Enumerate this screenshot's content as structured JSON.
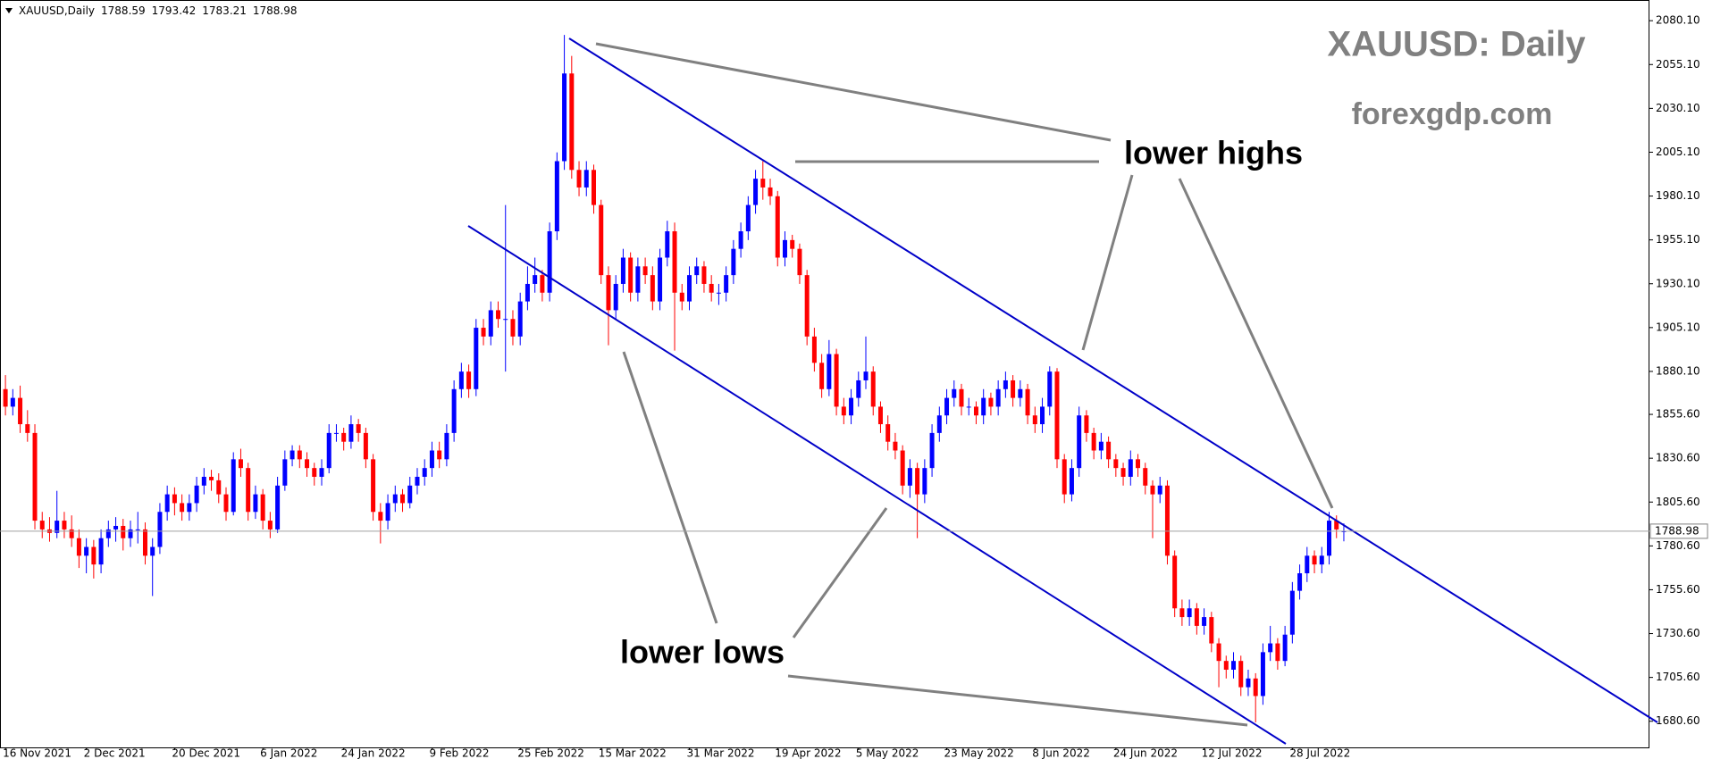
{
  "chart_data": {
    "type": "candlestick",
    "symbol": "XAUUSD,Daily",
    "title": "XAUUSD: Daily",
    "subtitle": "forexgdp.com",
    "annotations": [
      "lower highs",
      "lower lows"
    ],
    "up_color": "#0000ff",
    "down_color": "#ff0000",
    "ylim": [
      1665.7,
      2091.9
    ],
    "yticks": [
      {
        "value": 2080.1,
        "label": "2080.10"
      },
      {
        "value": 2055.1,
        "label": "2055.10"
      },
      {
        "value": 2030.1,
        "label": "2030.10"
      },
      {
        "value": 2005.1,
        "label": "2005.10"
      },
      {
        "value": 1980.1,
        "label": "1980.10"
      },
      {
        "value": 1955.1,
        "label": "1955.10"
      },
      {
        "value": 1930.1,
        "label": "1930.10"
      },
      {
        "value": 1905.1,
        "label": "1905.10"
      },
      {
        "value": 1880.1,
        "label": "1880.10"
      },
      {
        "value": 1855.6,
        "label": "1855.60"
      },
      {
        "value": 1830.6,
        "label": "1830.60"
      },
      {
        "value": 1805.6,
        "label": "1805.60"
      },
      {
        "value": 1780.6,
        "label": "1780.60"
      },
      {
        "value": 1755.6,
        "label": "1755.60"
      },
      {
        "value": 1730.6,
        "label": "1730.60"
      },
      {
        "value": 1705.6,
        "label": "1705.60"
      },
      {
        "value": 1680.6,
        "label": "1680.60"
      }
    ],
    "categories": [
      "16 Nov 2021",
      null,
      null,
      null,
      null,
      null,
      null,
      null,
      null,
      null,
      null,
      "2 Dec 2021",
      null,
      null,
      null,
      null,
      null,
      null,
      null,
      null,
      null,
      null,
      null,
      "20 Dec 2021",
      null,
      null,
      null,
      null,
      null,
      null,
      null,
      null,
      null,
      null,
      null,
      "6 Jan 2022",
      null,
      null,
      null,
      null,
      null,
      null,
      null,
      null,
      null,
      null,
      "24 Jan 2022",
      null,
      null,
      null,
      null,
      null,
      null,
      null,
      null,
      null,
      null,
      null,
      "9 Feb 2022",
      null,
      null,
      null,
      null,
      null,
      null,
      null,
      null,
      null,
      null,
      null,
      "25 Feb 2022",
      null,
      null,
      null,
      null,
      null,
      null,
      null,
      null,
      null,
      null,
      "15 Mar 2022",
      null,
      null,
      null,
      null,
      null,
      null,
      null,
      null,
      null,
      null,
      null,
      "31 Mar 2022",
      null,
      null,
      null,
      null,
      null,
      null,
      null,
      null,
      null,
      null,
      null,
      "19 Apr 2022",
      null,
      null,
      null,
      null,
      null,
      null,
      null,
      null,
      null,
      null,
      "5 May 2022",
      null,
      null,
      null,
      null,
      null,
      null,
      null,
      null,
      null,
      null,
      null,
      "23 May 2022",
      null,
      null,
      null,
      null,
      null,
      null,
      null,
      null,
      null,
      null,
      null,
      "8 Jun 2022",
      null,
      null,
      null,
      null,
      null,
      null,
      null,
      null,
      null,
      null,
      "24 Jun 2022",
      null,
      null,
      null,
      null,
      null,
      null,
      null,
      null,
      null,
      null,
      null,
      "12 Jul 2022",
      null,
      null,
      null,
      null,
      null,
      null,
      null,
      null,
      null,
      null,
      null,
      "28 Jul 2022",
      null,
      null,
      null,
      null,
      null,
      null,
      null
    ],
    "ohlc": [
      [
        1870,
        1878,
        1855,
        1860
      ],
      [
        1860,
        1870,
        1855,
        1865
      ],
      [
        1865,
        1872,
        1845,
        1850
      ],
      [
        1850,
        1858,
        1840,
        1845
      ],
      [
        1845,
        1850,
        1790,
        1795
      ],
      [
        1795,
        1800,
        1785,
        1790
      ],
      [
        1790,
        1797,
        1783,
        1788
      ],
      [
        1788,
        1812,
        1785,
        1795
      ],
      [
        1795,
        1800,
        1785,
        1790
      ],
      [
        1790,
        1798,
        1780,
        1785
      ],
      [
        1785,
        1790,
        1768,
        1775
      ],
      [
        1775,
        1785,
        1765,
        1780
      ],
      [
        1780,
        1784,
        1762,
        1770
      ],
      [
        1770,
        1790,
        1765,
        1785
      ],
      [
        1785,
        1795,
        1780,
        1790
      ],
      [
        1790,
        1797,
        1783,
        1792
      ],
      [
        1792,
        1796,
        1778,
        1785
      ],
      [
        1785,
        1795,
        1780,
        1790
      ],
      [
        1790,
        1800,
        1782,
        1790
      ],
      [
        1790,
        1794,
        1770,
        1775
      ],
      [
        1775,
        1785,
        1752,
        1780
      ],
      [
        1780,
        1805,
        1776,
        1800
      ],
      [
        1800,
        1815,
        1795,
        1810
      ],
      [
        1810,
        1814,
        1798,
        1805
      ],
      [
        1805,
        1810,
        1795,
        1800
      ],
      [
        1800,
        1810,
        1795,
        1805
      ],
      [
        1805,
        1820,
        1800,
        1815
      ],
      [
        1815,
        1825,
        1810,
        1820
      ],
      [
        1820,
        1824,
        1812,
        1818
      ],
      [
        1818,
        1822,
        1805,
        1810
      ],
      [
        1810,
        1814,
        1795,
        1800
      ],
      [
        1800,
        1834,
        1798,
        1830
      ],
      [
        1830,
        1836,
        1820,
        1825
      ],
      [
        1825,
        1828,
        1795,
        1800
      ],
      [
        1800,
        1815,
        1796,
        1810
      ],
      [
        1810,
        1813,
        1790,
        1795
      ],
      [
        1795,
        1800,
        1785,
        1790
      ],
      [
        1790,
        1820,
        1788,
        1815
      ],
      [
        1815,
        1835,
        1812,
        1830
      ],
      [
        1830,
        1838,
        1826,
        1835
      ],
      [
        1835,
        1838,
        1825,
        1830
      ],
      [
        1830,
        1834,
        1820,
        1825
      ],
      [
        1825,
        1828,
        1815,
        1820
      ],
      [
        1820,
        1830,
        1815,
        1825
      ],
      [
        1825,
        1850,
        1822,
        1845
      ],
      [
        1845,
        1850,
        1840,
        1845
      ],
      [
        1845,
        1848,
        1835,
        1840
      ],
      [
        1840,
        1855,
        1836,
        1850
      ],
      [
        1850,
        1853,
        1840,
        1845
      ],
      [
        1845,
        1848,
        1825,
        1830
      ],
      [
        1830,
        1833,
        1795,
        1800
      ],
      [
        1800,
        1805,
        1782,
        1795
      ],
      [
        1795,
        1810,
        1790,
        1805
      ],
      [
        1805,
        1815,
        1800,
        1810
      ],
      [
        1810,
        1813,
        1800,
        1805
      ],
      [
        1805,
        1820,
        1802,
        1815
      ],
      [
        1815,
        1825,
        1810,
        1820
      ],
      [
        1820,
        1830,
        1815,
        1825
      ],
      [
        1825,
        1840,
        1820,
        1835
      ],
      [
        1835,
        1840,
        1825,
        1830
      ],
      [
        1830,
        1850,
        1826,
        1845
      ],
      [
        1845,
        1875,
        1840,
        1870
      ],
      [
        1870,
        1885,
        1865,
        1880
      ],
      [
        1880,
        1884,
        1865,
        1870
      ],
      [
        1870,
        1910,
        1866,
        1905
      ],
      [
        1905,
        1910,
        1895,
        1900
      ],
      [
        1900,
        1920,
        1895,
        1915
      ],
      [
        1915,
        1920,
        1905,
        1910
      ],
      [
        1910,
        1975,
        1880,
        1910
      ],
      [
        1910,
        1915,
        1895,
        1900
      ],
      [
        1900,
        1925,
        1895,
        1920
      ],
      [
        1920,
        1940,
        1915,
        1930
      ],
      [
        1930,
        1945,
        1925,
        1935
      ],
      [
        1935,
        1938,
        1920,
        1925
      ],
      [
        1925,
        1965,
        1920,
        1960
      ],
      [
        1960,
        2005,
        1955,
        2000
      ],
      [
        2000,
        2072,
        1995,
        2050
      ],
      [
        2050,
        2060,
        1990,
        1995
      ],
      [
        1995,
        2000,
        1980,
        1985
      ],
      [
        1985,
        2000,
        1980,
        1995
      ],
      [
        1995,
        1998,
        1970,
        1975
      ],
      [
        1975,
        1978,
        1930,
        1935
      ],
      [
        1935,
        1940,
        1895,
        1915
      ],
      [
        1915,
        1935,
        1910,
        1930
      ],
      [
        1930,
        1950,
        1925,
        1945
      ],
      [
        1945,
        1948,
        1920,
        1925
      ],
      [
        1925,
        1945,
        1920,
        1940
      ],
      [
        1940,
        1945,
        1930,
        1935
      ],
      [
        1935,
        1940,
        1915,
        1920
      ],
      [
        1920,
        1950,
        1915,
        1945
      ],
      [
        1945,
        1966,
        1940,
        1960
      ],
      [
        1960,
        1965,
        1892,
        1925
      ],
      [
        1925,
        1930,
        1915,
        1920
      ],
      [
        1920,
        1940,
        1915,
        1935
      ],
      [
        1935,
        1945,
        1930,
        1940
      ],
      [
        1940,
        1943,
        1925,
        1930
      ],
      [
        1930,
        1935,
        1920,
        1925
      ],
      [
        1925,
        1930,
        1918,
        1925
      ],
      [
        1925,
        1940,
        1920,
        1935
      ],
      [
        1935,
        1955,
        1930,
        1950
      ],
      [
        1950,
        1965,
        1945,
        1960
      ],
      [
        1960,
        1980,
        1955,
        1975
      ],
      [
        1975,
        1995,
        1970,
        1990
      ],
      [
        1990,
        2000,
        1978,
        1985
      ],
      [
        1985,
        1990,
        1975,
        1980
      ],
      [
        1980,
        1983,
        1940,
        1945
      ],
      [
        1945,
        1960,
        1940,
        1955
      ],
      [
        1955,
        1958,
        1945,
        1950
      ],
      [
        1950,
        1953,
        1930,
        1935
      ],
      [
        1935,
        1938,
        1895,
        1900
      ],
      [
        1900,
        1905,
        1880,
        1885
      ],
      [
        1885,
        1890,
        1865,
        1870
      ],
      [
        1870,
        1898,
        1866,
        1890
      ],
      [
        1890,
        1893,
        1855,
        1860
      ],
      [
        1860,
        1865,
        1850,
        1855
      ],
      [
        1855,
        1870,
        1850,
        1865
      ],
      [
        1865,
        1880,
        1860,
        1875
      ],
      [
        1875,
        1900,
        1870,
        1880
      ],
      [
        1880,
        1883,
        1855,
        1860
      ],
      [
        1860,
        1863,
        1845,
        1850
      ],
      [
        1850,
        1855,
        1835,
        1840
      ],
      [
        1840,
        1845,
        1830,
        1835
      ],
      [
        1835,
        1838,
        1810,
        1815
      ],
      [
        1815,
        1830,
        1808,
        1825
      ],
      [
        1825,
        1828,
        1785,
        1810
      ],
      [
        1810,
        1830,
        1805,
        1825
      ],
      [
        1825,
        1850,
        1820,
        1845
      ],
      [
        1845,
        1860,
        1840,
        1855
      ],
      [
        1855,
        1870,
        1850,
        1865
      ],
      [
        1865,
        1875,
        1860,
        1870
      ],
      [
        1870,
        1873,
        1855,
        1860
      ],
      [
        1860,
        1865,
        1855,
        1860
      ],
      [
        1860,
        1863,
        1850,
        1855
      ],
      [
        1855,
        1870,
        1850,
        1865
      ],
      [
        1865,
        1868,
        1855,
        1860
      ],
      [
        1860,
        1875,
        1855,
        1870
      ],
      [
        1870,
        1880,
        1865,
        1875
      ],
      [
        1875,
        1878,
        1860,
        1865
      ],
      [
        1865,
        1875,
        1860,
        1870
      ],
      [
        1870,
        1873,
        1850,
        1855
      ],
      [
        1855,
        1860,
        1845,
        1850
      ],
      [
        1850,
        1865,
        1845,
        1860
      ],
      [
        1860,
        1883,
        1855,
        1880
      ],
      [
        1880,
        1882,
        1825,
        1830
      ],
      [
        1830,
        1833,
        1805,
        1810
      ],
      [
        1810,
        1830,
        1806,
        1825
      ],
      [
        1825,
        1860,
        1820,
        1855
      ],
      [
        1855,
        1858,
        1840,
        1845
      ],
      [
        1845,
        1848,
        1830,
        1835
      ],
      [
        1835,
        1845,
        1830,
        1840
      ],
      [
        1840,
        1843,
        1825,
        1830
      ],
      [
        1830,
        1833,
        1820,
        1825
      ],
      [
        1825,
        1828,
        1815,
        1820
      ],
      [
        1820,
        1835,
        1815,
        1830
      ],
      [
        1830,
        1833,
        1820,
        1825
      ],
      [
        1825,
        1828,
        1810,
        1815
      ],
      [
        1815,
        1818,
        1785,
        1810
      ],
      [
        1810,
        1820,
        1805,
        1815
      ],
      [
        1815,
        1818,
        1770,
        1775
      ],
      [
        1775,
        1778,
        1740,
        1745
      ],
      [
        1745,
        1750,
        1735,
        1740
      ],
      [
        1740,
        1750,
        1735,
        1745
      ],
      [
        1745,
        1748,
        1730,
        1735
      ],
      [
        1735,
        1745,
        1730,
        1740
      ],
      [
        1740,
        1743,
        1720,
        1725
      ],
      [
        1725,
        1728,
        1700,
        1715
      ],
      [
        1715,
        1718,
        1705,
        1710
      ],
      [
        1710,
        1720,
        1705,
        1715
      ],
      [
        1715,
        1718,
        1695,
        1700
      ],
      [
        1700,
        1710,
        1695,
        1705
      ],
      [
        1705,
        1708,
        1680,
        1695
      ],
      [
        1695,
        1725,
        1690,
        1720
      ],
      [
        1720,
        1735,
        1715,
        1725
      ],
      [
        1725,
        1728,
        1710,
        1715
      ],
      [
        1715,
        1735,
        1712,
        1730
      ],
      [
        1730,
        1760,
        1725,
        1755
      ],
      [
        1755,
        1770,
        1750,
        1765
      ],
      [
        1765,
        1780,
        1760,
        1775
      ],
      [
        1775,
        1778,
        1765,
        1770
      ],
      [
        1770,
        1780,
        1765,
        1775
      ],
      [
        1775,
        1800,
        1770,
        1795
      ],
      [
        1795,
        1798,
        1785,
        1790
      ],
      [
        1788.59,
        1793.42,
        1783.21,
        1788.98
      ]
    ]
  }
}
